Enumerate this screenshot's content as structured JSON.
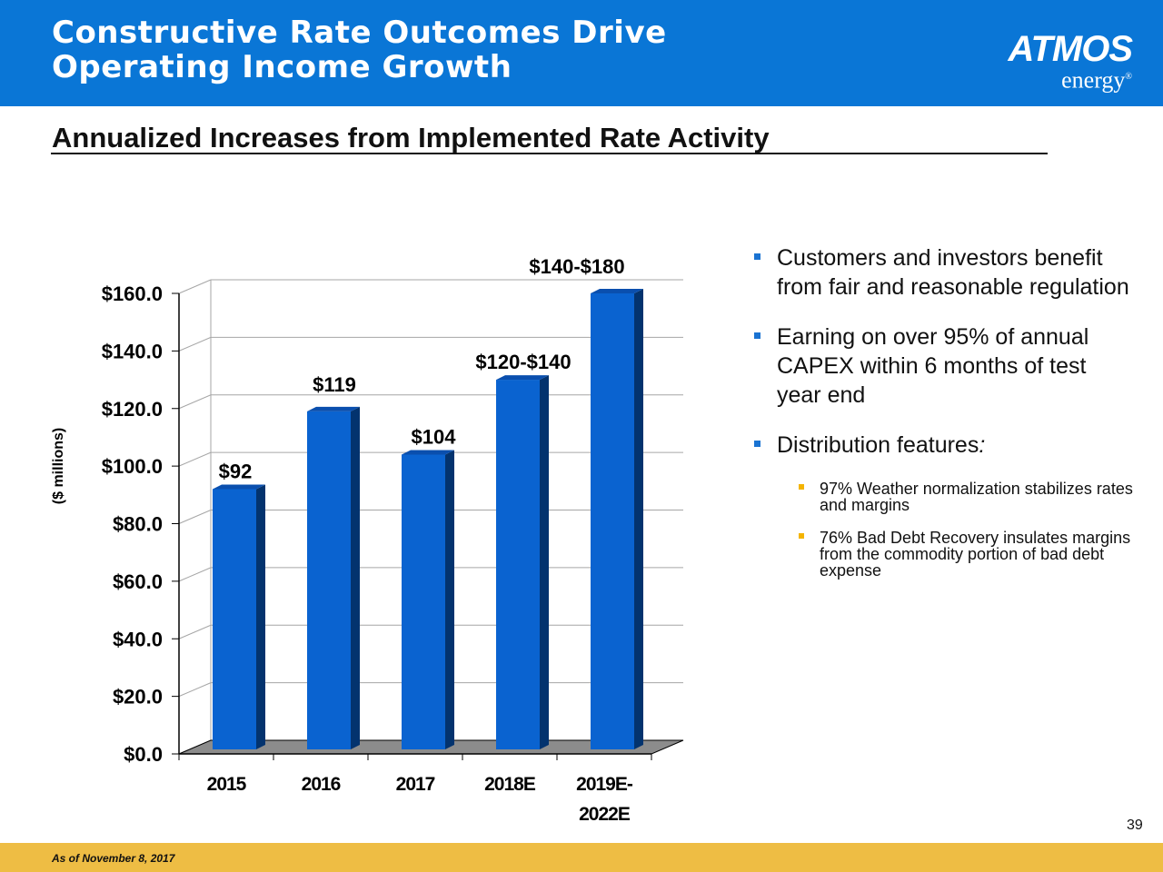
{
  "header": {
    "title_line1": "Constructive Rate Outcomes Drive",
    "title_line2": "Operating Income Growth",
    "logo_top": "ATMOS",
    "logo_bottom": "energy",
    "logo_mark": "®"
  },
  "subtitle": "Annualized Increases from Implemented Rate Activity",
  "colors": {
    "header_bg": "#0a76d6",
    "bar_front": "#0a63d0",
    "bar_side": "#03336e",
    "bar_top": "#0a4fae",
    "floor": "#8c8c8c",
    "bullet_primary": "#1a73d2",
    "bullet_secondary": "#f4b400",
    "footer_bg": "#eebd44"
  },
  "chart_data": {
    "type": "bar",
    "title": "Annualized Increases from Implemented Rate Activity",
    "ylabel": "($ millions)",
    "xlabel": "",
    "categories": [
      "2015",
      "2016",
      "2017",
      "2018E",
      "2019E-2022E"
    ],
    "category_lines": [
      [
        "2015"
      ],
      [
        "2016"
      ],
      [
        "2017"
      ],
      [
        "2018E"
      ],
      [
        "2019E-",
        "2022E"
      ]
    ],
    "values": [
      92,
      119,
      104,
      130,
      160
    ],
    "data_labels": [
      "$92",
      "$119",
      "$104",
      "$120-$140",
      "$140-$180"
    ],
    "ylim": [
      0,
      160
    ],
    "yticks": [
      0,
      20,
      40,
      60,
      80,
      100,
      120,
      140,
      160
    ],
    "ytick_labels": [
      "$0.0",
      "$20.0",
      "$40.0",
      "$60.0",
      "$80.0",
      "$100.0",
      "$120.0",
      "$140.0",
      "$160.0"
    ],
    "grid": true
  },
  "bullets": [
    {
      "text": "Customers and investors benefit from fair and reasonable regulation",
      "sub": []
    },
    {
      "text": "Earning on over 95% of annual CAPEX within 6 months of test year end",
      "sub": []
    },
    {
      "text": "Distribution features",
      "suffix": ":",
      "sub": [
        "97% Weather normalization stabilizes rates and margins",
        "76% Bad Debt Recovery insulates margins from the commodity portion of bad debt expense"
      ]
    }
  ],
  "page_number": "39",
  "footnote": "As of November 8, 2017"
}
